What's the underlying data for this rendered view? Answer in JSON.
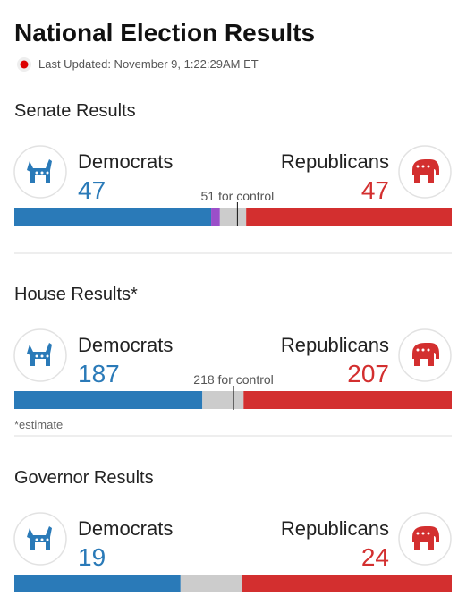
{
  "header": {
    "title": "National Election Results",
    "last_updated": "Last Updated: November 9, 1:22:29AM ET"
  },
  "sections": [
    {
      "title": "Senate Results",
      "dem_label": "Democrats",
      "dem_value": 47,
      "rep_label": "Republicans",
      "rep_value": 47,
      "control": 51,
      "control_label": "51 for control",
      "bar": [
        {
          "value": 45,
          "color": "#2a7ab8"
        },
        {
          "value": 2,
          "color": "#9b4fc9"
        },
        {
          "value": 6,
          "color": "#cccccc"
        },
        {
          "value": 47,
          "color": "#d32f2f"
        }
      ]
    },
    {
      "title": "House Results*",
      "dem_label": "Democrats",
      "dem_value": 187,
      "rep_label": "Republicans",
      "rep_value": 207,
      "control": 218,
      "control_label": "218 for control",
      "note": "*estimate",
      "bar": [
        {
          "value": 187,
          "color": "#2a7ab8"
        },
        {
          "value": 41,
          "color": "#cccccc"
        },
        {
          "value": 207,
          "color": "#d32f2f"
        }
      ]
    },
    {
      "title": "Governor Results",
      "dem_label": "Democrats",
      "dem_value": 19,
      "rep_label": "Republicans",
      "rep_value": 24,
      "bar": [
        {
          "value": 19,
          "color": "#2a7ab8"
        },
        {
          "value": 7,
          "color": "#cccccc"
        },
        {
          "value": 24,
          "color": "#d32f2f"
        }
      ]
    }
  ]
}
